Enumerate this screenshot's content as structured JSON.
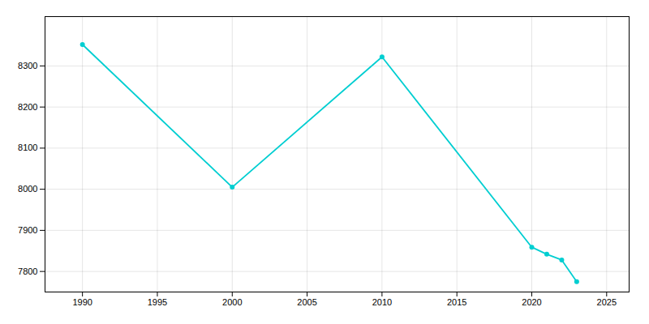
{
  "chart_data": {
    "type": "line",
    "x": [
      1990,
      2000,
      2010,
      2020,
      2021,
      2022,
      2023
    ],
    "values": [
      8352,
      8005,
      8322,
      7859,
      7842,
      7828,
      7775
    ],
    "color": "#00CED1",
    "marker": "o",
    "xlim": [
      1987.5,
      2026.5
    ],
    "ylim": [
      7750,
      8420
    ],
    "xticks": [
      1990,
      1995,
      2000,
      2005,
      2010,
      2015,
      2020,
      2025
    ],
    "yticks": [
      7800,
      7900,
      8000,
      8100,
      8200,
      8300
    ],
    "grid": true
  }
}
